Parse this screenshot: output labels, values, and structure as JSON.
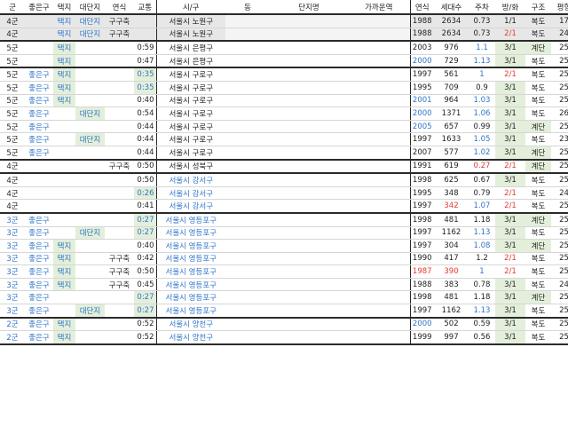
{
  "headers": [
    "군",
    "좋은구",
    "택지",
    "대단지",
    "연식",
    "교통",
    "시/구",
    "동",
    "단지명",
    "가까운역",
    "연식",
    "세대수",
    "주차",
    "방/화",
    "구조",
    "평형"
  ],
  "groups": [
    {
      "rows": [
        {
          "gun": "4군",
          "good": "",
          "taekji": "택지",
          "big": "대단지",
          "age": "구구축",
          "traffic": "",
          "city": "서울시 노원구",
          "year": "1988",
          "households": "2634",
          "parking": "0.73",
          "rooms": "1/1",
          "structure": "복도",
          "size": "17",
          "gray": true
        },
        {
          "gun": "4군",
          "good": "",
          "taekji": "택지",
          "big": "대단지",
          "age": "구구축",
          "traffic": "",
          "city": "서울시 노원구",
          "year": "1988",
          "households": "2634",
          "parking": "0.73",
          "rooms": "2/1",
          "structure": "복도",
          "size": "24",
          "gray": true
        }
      ]
    },
    {
      "rows": [
        {
          "gun": "5군",
          "good": "",
          "taekji": "택지",
          "big": "",
          "age": "",
          "traffic": "0:59",
          "city": "서울시 은평구",
          "year": "2003",
          "households": "976",
          "parking": "1.1",
          "rooms": "3/1",
          "structure": "계단",
          "size": "25"
        },
        {
          "gun": "5군",
          "good": "",
          "taekji": "택지",
          "big": "",
          "age": "",
          "traffic": "0:47",
          "city": "서울시 은평구",
          "year": "2000",
          "households": "729",
          "parking": "1.13",
          "rooms": "3/1",
          "structure": "복도",
          "size": "25"
        }
      ]
    },
    {
      "rows": [
        {
          "gun": "5군",
          "good": "좋은구",
          "taekji": "택지",
          "big": "",
          "age": "",
          "traffic": "0:35",
          "city": "서울시 구로구",
          "year": "1997",
          "households": "561",
          "parking": "1",
          "rooms": "2/1",
          "structure": "복도",
          "size": "25"
        },
        {
          "gun": "5군",
          "good": "좋은구",
          "taekji": "택지",
          "big": "",
          "age": "",
          "traffic": "0:35",
          "city": "서울시 구로구",
          "year": "1995",
          "households": "709",
          "parking": "0.9",
          "rooms": "3/1",
          "structure": "복도",
          "size": "25"
        },
        {
          "gun": "5군",
          "good": "좋은구",
          "taekji": "택지",
          "big": "",
          "age": "",
          "traffic": "0:40",
          "city": "서울시 구로구",
          "year": "2001",
          "households": "964",
          "parking": "1.03",
          "rooms": "3/1",
          "structure": "복도",
          "size": "25"
        },
        {
          "gun": "5군",
          "good": "좋은구",
          "taekji": "",
          "big": "대단지",
          "age": "",
          "traffic": "0:54",
          "city": "서울시 구로구",
          "year": "2000",
          "households": "1371",
          "parking": "1.06",
          "rooms": "3/1",
          "structure": "복도",
          "size": "26"
        },
        {
          "gun": "5군",
          "good": "좋은구",
          "taekji": "",
          "big": "",
          "age": "",
          "traffic": "0:44",
          "city": "서울시 구로구",
          "year": "2005",
          "households": "657",
          "parking": "0.99",
          "rooms": "3/1",
          "structure": "계단",
          "size": "25"
        },
        {
          "gun": "5군",
          "good": "좋은구",
          "taekji": "",
          "big": "대단지",
          "age": "",
          "traffic": "0:44",
          "city": "서울시 구로구",
          "year": "1997",
          "households": "1633",
          "parking": "1.05",
          "rooms": "3/1",
          "structure": "복도",
          "size": "23"
        },
        {
          "gun": "5군",
          "good": "좋은구",
          "taekji": "",
          "big": "",
          "age": "",
          "traffic": "0:44",
          "city": "서울시 구로구",
          "year": "2007",
          "households": "577",
          "parking": "1.02",
          "rooms": "3/1",
          "structure": "계단",
          "size": "25"
        }
      ]
    },
    {
      "rows": [
        {
          "gun": "4군",
          "good": "",
          "taekji": "",
          "big": "",
          "age": "구구축",
          "traffic": "0:50",
          "city": "서울시 성북구",
          "year": "1991",
          "households": "619",
          "parking": "0.27",
          "rooms": "2/1",
          "structure": "계단",
          "size": "25"
        }
      ]
    },
    {
      "rows": [
        {
          "gun": "4군",
          "good": "",
          "taekji": "",
          "big": "",
          "age": "",
          "traffic": "0:50",
          "city": "서울시 강서구",
          "year": "1998",
          "households": "625",
          "parking": "0.67",
          "rooms": "3/1",
          "structure": "복도",
          "size": "25"
        },
        {
          "gun": "4군",
          "good": "",
          "taekji": "",
          "big": "",
          "age": "",
          "traffic": "0:26",
          "city": "서울시 강서구",
          "year": "1995",
          "households": "348",
          "parking": "0.79",
          "rooms": "2/1",
          "structure": "복도",
          "size": "24"
        },
        {
          "gun": "4군",
          "good": "",
          "taekji": "",
          "big": "",
          "age": "",
          "traffic": "0:41",
          "city": "서울시 강서구",
          "year": "1997",
          "households": "342",
          "parking": "1.07",
          "rooms": "2/1",
          "structure": "복도",
          "size": "25"
        }
      ]
    },
    {
      "rows": [
        {
          "gun": "3군",
          "good": "좋은구",
          "taekji": "",
          "big": "",
          "age": "",
          "traffic": "0:27",
          "city": "서울시 영등포구",
          "year": "1998",
          "households": "481",
          "parking": "1.18",
          "rooms": "3/1",
          "structure": "계단",
          "size": "25"
        },
        {
          "gun": "3군",
          "good": "좋은구",
          "taekji": "",
          "big": "대단지",
          "age": "",
          "traffic": "0:27",
          "city": "서울시 영등포구",
          "year": "1997",
          "households": "1162",
          "parking": "1.13",
          "rooms": "3/1",
          "structure": "복도",
          "size": "25"
        },
        {
          "gun": "3군",
          "good": "좋은구",
          "taekji": "택지",
          "big": "",
          "age": "",
          "traffic": "0:40",
          "city": "서울시 영등포구",
          "year": "1997",
          "households": "304",
          "parking": "1.08",
          "rooms": "3/1",
          "structure": "계단",
          "size": "25"
        },
        {
          "gun": "3군",
          "good": "좋은구",
          "taekji": "택지",
          "big": "",
          "age": "구구축",
          "traffic": "0:42",
          "city": "서울시 영등포구",
          "year": "1990",
          "households": "417",
          "parking": "1.2",
          "rooms": "2/1",
          "structure": "복도",
          "size": "25"
        },
        {
          "gun": "3군",
          "good": "좋은구",
          "taekji": "택지",
          "big": "",
          "age": "구구축",
          "traffic": "0:50",
          "city": "서울시 영등포구",
          "year": "1987",
          "households": "390",
          "parking": "1",
          "rooms": "2/1",
          "structure": "복도",
          "size": "25"
        },
        {
          "gun": "3군",
          "good": "좋은구",
          "taekji": "택지",
          "big": "",
          "age": "구구축",
          "traffic": "0:45",
          "city": "서울시 영등포구",
          "year": "1988",
          "households": "383",
          "parking": "0.78",
          "rooms": "3/1",
          "structure": "복도",
          "size": "24"
        },
        {
          "gun": "3군",
          "good": "좋은구",
          "taekji": "",
          "big": "",
          "age": "",
          "traffic": "0:27",
          "city": "서울시 영등포구",
          "year": "1998",
          "households": "481",
          "parking": "1.18",
          "rooms": "3/1",
          "structure": "계단",
          "size": "25"
        },
        {
          "gun": "3군",
          "good": "좋은구",
          "taekji": "",
          "big": "대단지",
          "age": "",
          "traffic": "0:27",
          "city": "서울시 영등포구",
          "year": "1997",
          "households": "1162",
          "parking": "1.13",
          "rooms": "3/1",
          "structure": "복도",
          "size": "25"
        }
      ]
    },
    {
      "rows": [
        {
          "gun": "2군",
          "good": "좋은구",
          "taekji": "택지",
          "big": "",
          "age": "",
          "traffic": "0:52",
          "city": "서울시 양천구",
          "year": "2000",
          "households": "502",
          "parking": "0.59",
          "rooms": "3/1",
          "structure": "복도",
          "size": "25"
        },
        {
          "gun": "2군",
          "good": "좋은구",
          "taekji": "택지",
          "big": "",
          "age": "",
          "traffic": "0:52",
          "city": "서울시 양천구",
          "year": "1999",
          "households": "997",
          "parking": "0.56",
          "rooms": "3/1",
          "structure": "복도",
          "size": "25"
        }
      ]
    }
  ]
}
